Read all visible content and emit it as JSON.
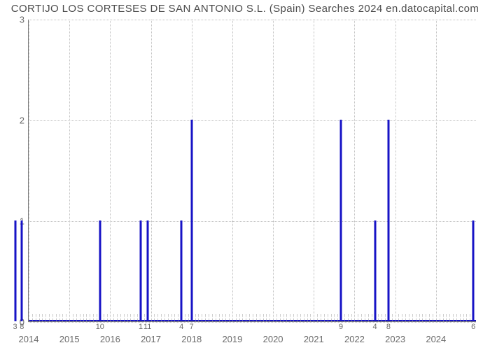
{
  "title": "CORTIJO LOS CORTESES DE SAN ANTONIO S.L. (Spain) Searches 2024 en.datocapital.com",
  "chart": {
    "type": "line-spike",
    "line_color": "#1713c6",
    "line_width": 2,
    "background_color": "#ffffff",
    "grid_color": "#bfbfbf",
    "axis_color": "#7a7a7a",
    "tick_label_color": "#6b6b6b",
    "title_color": "#4b4b4b",
    "title_fontsize": 15,
    "ylim": [
      0,
      3
    ],
    "yticks": [
      0,
      1,
      2,
      3
    ],
    "x_domain_months": [
      0,
      132
    ],
    "year_gridlines": [
      {
        "month": 0,
        "label": "2014"
      },
      {
        "month": 12,
        "label": "2015"
      },
      {
        "month": 24,
        "label": "2016"
      },
      {
        "month": 36,
        "label": "2017"
      },
      {
        "month": 48,
        "label": "2018"
      },
      {
        "month": 60,
        "label": "2019"
      },
      {
        "month": 72,
        "label": "2020"
      },
      {
        "month": 84,
        "label": "2021"
      },
      {
        "month": 96,
        "label": "2022"
      },
      {
        "month": 108,
        "label": "2023"
      },
      {
        "month": 120,
        "label": "2024"
      }
    ],
    "minor_ticks_per_year": 12,
    "point_labels": [
      {
        "month": -4,
        "text": "3"
      },
      {
        "month": -2,
        "text": "8"
      },
      {
        "month": 21,
        "text": "10"
      },
      {
        "month": 33,
        "text": "1"
      },
      {
        "month": 35,
        "text": "11"
      },
      {
        "month": 45,
        "text": "4"
      },
      {
        "month": 48,
        "text": "7"
      },
      {
        "month": 92,
        "text": "9"
      },
      {
        "month": 102,
        "text": "4"
      },
      {
        "month": 106,
        "text": "8"
      },
      {
        "month": 131,
        "text": "6"
      }
    ],
    "spikes": [
      {
        "month": -4,
        "value": 1
      },
      {
        "month": -2,
        "value": 1
      },
      {
        "month": 21,
        "value": 1
      },
      {
        "month": 33,
        "value": 1
      },
      {
        "month": 35,
        "value": 1
      },
      {
        "month": 45,
        "value": 1
      },
      {
        "month": 48,
        "value": 2
      },
      {
        "month": 92,
        "value": 2
      },
      {
        "month": 102,
        "value": 1
      },
      {
        "month": 106,
        "value": 2
      },
      {
        "month": 131,
        "value": 1
      }
    ]
  }
}
